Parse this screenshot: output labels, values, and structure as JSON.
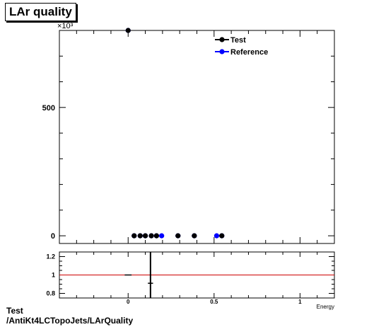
{
  "title": "LAr quality",
  "footer": {
    "line1": "Test",
    "line2": "/AntiKt4LCTopoJets/LArQuality"
  },
  "colors": {
    "test": "#000000",
    "reference": "#0000ff",
    "ratio_line": "#cc0000"
  },
  "chart_data": [
    {
      "type": "scatter",
      "panel": "main",
      "xlim": [
        -0.4,
        1.2
      ],
      "ylim": [
        -30,
        800
      ],
      "y_exponent_label": "×10³",
      "y_ticks": [
        0,
        500
      ],
      "y_tick_labels": [
        "0",
        "500"
      ],
      "grid": false,
      "legend_position": "top-right",
      "series": [
        {
          "name": "Test",
          "color": "#000000",
          "x": [
            0.0,
            0.035,
            0.07,
            0.1,
            0.135,
            0.165,
            0.29,
            0.385,
            0.545
          ],
          "y": [
            800,
            0,
            0,
            0,
            0,
            0,
            0,
            0,
            0
          ]
        },
        {
          "name": "Reference",
          "color": "#0000ff",
          "x": [
            0.0,
            0.035,
            0.07,
            0.1,
            0.135,
            0.165,
            0.195,
            0.29,
            0.385,
            0.515,
            0.545
          ],
          "y": [
            800,
            0,
            0,
            0,
            0,
            0,
            0,
            0,
            0,
            0,
            0
          ]
        }
      ]
    },
    {
      "type": "scatter",
      "panel": "ratio",
      "xlim": [
        -0.4,
        1.2
      ],
      "ylim": [
        0.75,
        1.25
      ],
      "x_ticks": [
        0,
        0.5,
        1
      ],
      "x_tick_labels": [
        "0",
        "0.5",
        "1"
      ],
      "y_ticks": [
        0.8,
        1,
        1.2
      ],
      "y_tick_labels": [
        "0.8",
        "1",
        "1.2"
      ],
      "xlabel": "Energy",
      "reference_line": 1,
      "points": [
        {
          "x": 0.0,
          "y": 1.0,
          "xerr": 0.02,
          "yerr": 0
        },
        {
          "x": 0.13,
          "y": 0.91,
          "xerr": 0.015,
          "yerr": 0.5
        }
      ]
    }
  ]
}
